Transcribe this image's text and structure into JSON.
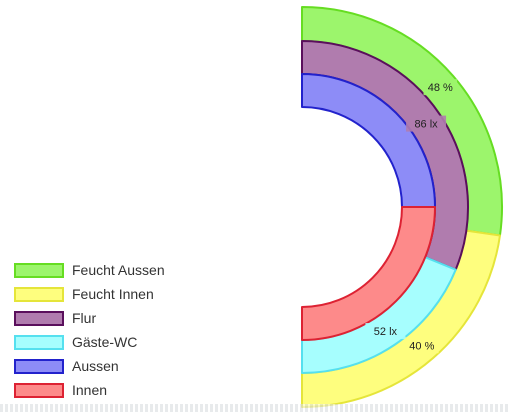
{
  "chart_data": {
    "type": "pie",
    "subtype": "nested-semi-donut",
    "rings": [
      {
        "ring": "outer",
        "slices": [
          {
            "label": "Feucht Aussen",
            "value": 48,
            "data_label": "48 %",
            "fill": "#9cf56c",
            "stroke": "#66dd22"
          },
          {
            "label": "Feucht Innen",
            "value": 40,
            "data_label": "40 %",
            "fill": "#fefe7e",
            "stroke": "#e5e53a"
          }
        ]
      },
      {
        "ring": "middle",
        "slices": [
          {
            "label": "Flur",
            "value": 86,
            "data_label": "86 lx",
            "fill": "#b07cae",
            "stroke": "#5a0f5c"
          },
          {
            "label": "Gäste-WC",
            "value": 52,
            "data_label": "52 lx",
            "fill": "#a6fefe",
            "stroke": "#55e0ef"
          }
        ]
      },
      {
        "ring": "inner",
        "slices": [
          {
            "label": "Aussen",
            "value": 50,
            "data_label": "",
            "fill": "#8d8cf7",
            "stroke": "#2222cc"
          },
          {
            "label": "Innen",
            "value": 50,
            "data_label": "",
            "fill": "#fd8a8a",
            "stroke": "#dd2233"
          }
        ]
      }
    ],
    "legend": [
      {
        "label": "Feucht Aussen",
        "fill": "#9cf56c",
        "stroke": "#66dd22"
      },
      {
        "label": "Feucht Innen",
        "fill": "#fefe7e",
        "stroke": "#e5e53a"
      },
      {
        "label": "Flur",
        "fill": "#b07cae",
        "stroke": "#5a0f5c"
      },
      {
        "label": "Gäste-WC",
        "fill": "#a6fefe",
        "stroke": "#55e0ef"
      },
      {
        "label": "Aussen",
        "fill": "#8d8cf7",
        "stroke": "#2222cc"
      },
      {
        "label": "Innen",
        "fill": "#fd8a8a",
        "stroke": "#dd2233"
      }
    ],
    "legend_position": "bottom-left",
    "title": ""
  }
}
